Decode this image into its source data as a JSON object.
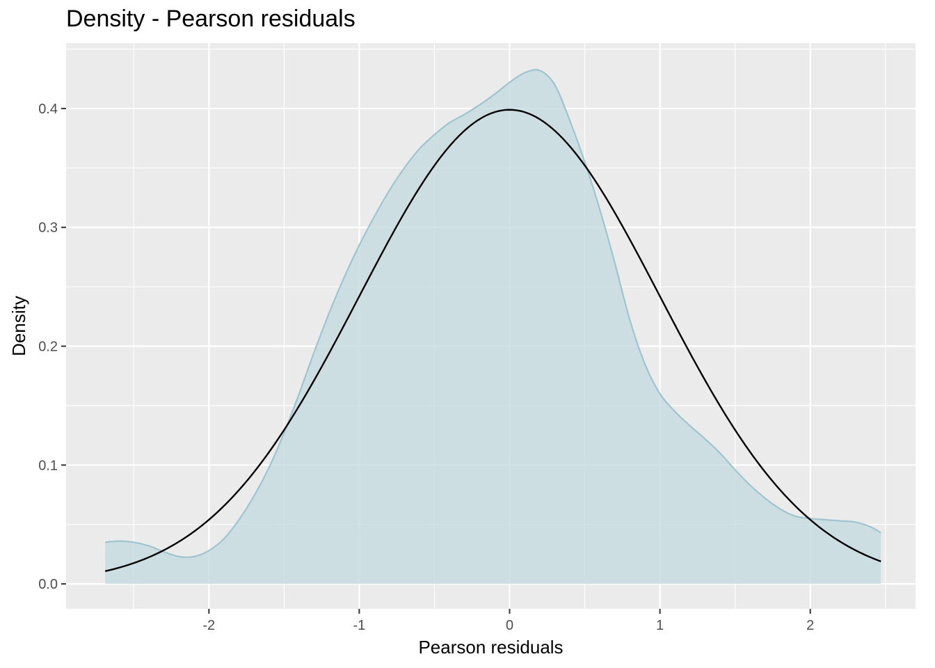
{
  "chart_data": {
    "type": "area",
    "title": "Density - Pearson residuals",
    "xlabel": "Pearson residuals",
    "ylabel": "Density",
    "xlim": [
      -2.95,
      2.7
    ],
    "ylim": [
      -0.021,
      0.455
    ],
    "x_ticks": [
      -2,
      -1,
      0,
      1,
      2
    ],
    "x_tick_labels": [
      "-2",
      "-1",
      "0",
      "1",
      "2"
    ],
    "y_ticks": [
      0.0,
      0.1,
      0.2,
      0.3,
      0.4
    ],
    "y_tick_labels": [
      "0.0",
      "0.1",
      "0.2",
      "0.3",
      "0.4"
    ],
    "grid": true,
    "series": [
      {
        "kind": "kernel-density-area",
        "color": "#9fc4d0",
        "fill": "#c6dbe1",
        "x": [
          -2.69,
          -2.6,
          -2.5,
          -2.4,
          -2.3,
          -2.2,
          -2.1,
          -2.0,
          -1.9,
          -1.8,
          -1.7,
          -1.6,
          -1.5,
          -1.4,
          -1.3,
          -1.2,
          -1.1,
          -1.0,
          -0.9,
          -0.8,
          -0.7,
          -0.6,
          -0.5,
          -0.4,
          -0.3,
          -0.2,
          -0.1,
          0.0,
          0.1,
          0.2,
          0.3,
          0.4,
          0.5,
          0.6,
          0.7,
          0.8,
          0.9,
          1.0,
          1.1,
          1.2,
          1.3,
          1.4,
          1.5,
          1.6,
          1.7,
          1.8,
          1.9,
          2.0,
          2.1,
          2.2,
          2.3,
          2.4,
          2.47
        ],
        "y": [
          0.035,
          0.036,
          0.035,
          0.032,
          0.027,
          0.023,
          0.023,
          0.028,
          0.038,
          0.054,
          0.074,
          0.098,
          0.127,
          0.16,
          0.195,
          0.228,
          0.258,
          0.285,
          0.309,
          0.331,
          0.35,
          0.366,
          0.378,
          0.388,
          0.395,
          0.403,
          0.412,
          0.422,
          0.43,
          0.432,
          0.42,
          0.39,
          0.355,
          0.315,
          0.27,
          0.222,
          0.185,
          0.16,
          0.145,
          0.133,
          0.122,
          0.11,
          0.096,
          0.083,
          0.072,
          0.063,
          0.057,
          0.055,
          0.054,
          0.053,
          0.052,
          0.048,
          0.043
        ]
      },
      {
        "kind": "normal-density-curve",
        "color": "#000000",
        "mean": 0,
        "sd": 1,
        "x_range": [
          -2.69,
          2.47
        ]
      }
    ]
  }
}
